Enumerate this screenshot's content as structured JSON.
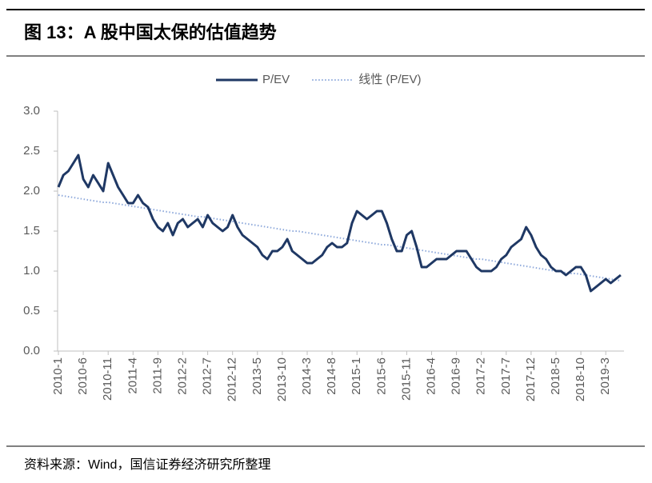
{
  "header": {
    "title": "图 13：A 股中国太保的估值趋势"
  },
  "chart_data": {
    "type": "line",
    "categories": [
      "2010-1",
      null,
      null,
      null,
      null,
      "2010-6",
      null,
      null,
      null,
      null,
      "2010-11",
      null,
      null,
      null,
      null,
      "2011-4",
      null,
      null,
      null,
      null,
      "2011-9",
      null,
      null,
      null,
      null,
      "2012-2",
      null,
      null,
      null,
      null,
      "2012-7",
      null,
      null,
      null,
      null,
      "2012-12",
      null,
      null,
      null,
      null,
      "2013-5",
      null,
      null,
      null,
      null,
      "2013-10",
      null,
      null,
      null,
      null,
      "2014-3",
      null,
      null,
      null,
      null,
      "2014-8",
      null,
      null,
      null,
      null,
      "2015-1",
      null,
      null,
      null,
      null,
      "2015-6",
      null,
      null,
      null,
      null,
      "2015-11",
      null,
      null,
      null,
      null,
      "2016-4",
      null,
      null,
      null,
      null,
      "2016-9",
      null,
      null,
      null,
      null,
      "2017-2",
      null,
      null,
      null,
      null,
      "2017-7",
      null,
      null,
      null,
      null,
      "2017-12",
      null,
      null,
      null,
      null,
      "2018-5",
      null,
      null,
      null,
      null,
      "2018-10",
      null,
      null,
      null,
      null,
      "2019-3",
      null,
      null,
      null
    ],
    "series": [
      {
        "name": "P/EV",
        "color": "#1f3864",
        "style": "solid",
        "values": [
          2.05,
          2.2,
          2.25,
          2.35,
          2.45,
          2.15,
          2.05,
          2.2,
          2.1,
          2.0,
          2.35,
          2.2,
          2.05,
          1.95,
          1.85,
          1.85,
          1.95,
          1.85,
          1.8,
          1.65,
          1.55,
          1.5,
          1.6,
          1.45,
          1.6,
          1.65,
          1.55,
          1.6,
          1.65,
          1.55,
          1.7,
          1.6,
          1.55,
          1.5,
          1.55,
          1.7,
          1.55,
          1.45,
          1.4,
          1.35,
          1.3,
          1.2,
          1.15,
          1.25,
          1.25,
          1.3,
          1.4,
          1.25,
          1.2,
          1.15,
          1.1,
          1.1,
          1.15,
          1.2,
          1.3,
          1.35,
          1.3,
          1.3,
          1.35,
          1.6,
          1.75,
          1.7,
          1.65,
          1.7,
          1.75,
          1.75,
          1.6,
          1.4,
          1.25,
          1.25,
          1.45,
          1.5,
          1.3,
          1.05,
          1.05,
          1.1,
          1.15,
          1.15,
          1.15,
          1.2,
          1.25,
          1.25,
          1.25,
          1.15,
          1.05,
          1.0,
          1.0,
          1.0,
          1.05,
          1.15,
          1.2,
          1.3,
          1.35,
          1.4,
          1.55,
          1.45,
          1.3,
          1.2,
          1.15,
          1.05,
          1.0,
          1.0,
          0.95,
          1.0,
          1.05,
          1.05,
          0.95,
          0.75,
          0.8,
          0.85,
          0.9,
          0.85,
          0.9,
          0.95
        ]
      },
      {
        "name": "线性 (P/EV)",
        "color": "#8ea9db",
        "style": "dotted",
        "values": [
          1.95,
          1.94,
          1.93,
          1.92,
          1.91,
          1.9,
          1.89,
          1.88,
          1.87,
          1.86,
          1.86,
          1.85,
          1.84,
          1.83,
          1.82,
          1.81,
          1.8,
          1.79,
          1.78,
          1.77,
          1.76,
          1.75,
          1.74,
          1.73,
          1.72,
          1.71,
          1.7,
          1.69,
          1.68,
          1.68,
          1.67,
          1.66,
          1.65,
          1.64,
          1.63,
          1.62,
          1.61,
          1.6,
          1.59,
          1.58,
          1.57,
          1.56,
          1.55,
          1.54,
          1.53,
          1.52,
          1.51,
          1.5,
          1.5,
          1.49,
          1.48,
          1.47,
          1.46,
          1.45,
          1.44,
          1.43,
          1.42,
          1.41,
          1.4,
          1.39,
          1.38,
          1.37,
          1.36,
          1.35,
          1.34,
          1.33,
          1.33,
          1.32,
          1.31,
          1.3,
          1.29,
          1.28,
          1.27,
          1.26,
          1.25,
          1.24,
          1.23,
          1.22,
          1.21,
          1.2,
          1.19,
          1.18,
          1.17,
          1.16,
          1.15,
          1.15,
          1.14,
          1.13,
          1.12,
          1.11,
          1.1,
          1.09,
          1.08,
          1.07,
          1.06,
          1.05,
          1.04,
          1.03,
          1.02,
          1.01,
          1.0,
          0.99,
          0.98,
          0.97,
          0.97,
          0.96,
          0.95,
          0.94,
          0.93,
          0.92,
          0.91,
          0.9,
          0.89,
          0.88
        ]
      }
    ],
    "ylim": [
      0,
      3
    ],
    "yticks": [
      {
        "value": 0,
        "label": "0.0"
      },
      0.5,
      {
        "value": 1,
        "label": "1.0"
      },
      1.5,
      {
        "value": 2,
        "label": "2.0"
      },
      2.5,
      {
        "value": 3,
        "label": "3.0"
      }
    ],
    "grid": false,
    "legend": "top"
  },
  "footer": {
    "source": "资料来源：Wind，国信证券经济研究所整理"
  }
}
